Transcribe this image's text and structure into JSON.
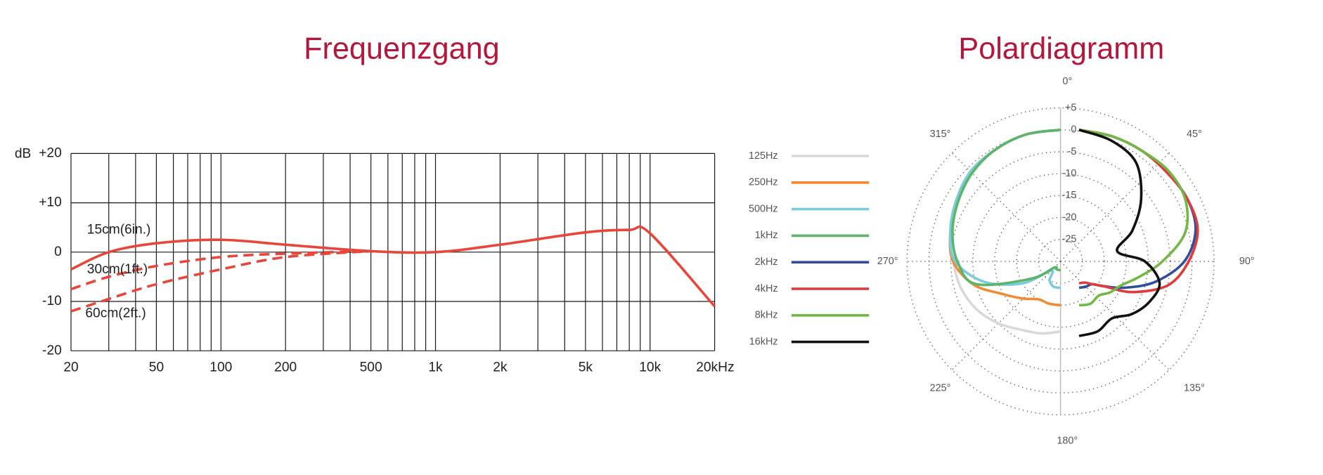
{
  "chart_data": [
    {
      "type": "line",
      "title": "Frequenzgang",
      "ylabel": "dB",
      "log_x": true,
      "grid": true,
      "xlim": [
        20,
        20000
      ],
      "xticks": [
        20,
        50,
        100,
        200,
        500,
        {
          "value": 1000,
          "label": "1k"
        },
        {
          "value": 2000,
          "label": "2k"
        },
        {
          "value": 5000,
          "label": "5k"
        },
        {
          "value": 10000,
          "label": "10k"
        },
        {
          "value": 20000,
          "label": "20kHz"
        }
      ],
      "xminor": [
        30,
        40,
        60,
        70,
        80,
        90,
        300,
        400,
        600,
        700,
        800,
        900,
        3000,
        4000,
        6000,
        7000,
        8000,
        9000
      ],
      "ylim": [
        -20,
        20
      ],
      "yticks": [
        {
          "value": 20,
          "label": "+20"
        },
        {
          "value": 10,
          "label": "+10"
        },
        0,
        -10,
        -20
      ],
      "x": [
        20,
        30,
        50,
        100,
        200,
        500,
        1000,
        2000,
        5000,
        8000,
        10000,
        20000
      ],
      "series": [
        {
          "name": "15cm(6in.)",
          "color": "#e8463a",
          "dashed": false,
          "values": [
            -3.5,
            0,
            1.8,
            2.5,
            1.5,
            0.2,
            0,
            1.5,
            4,
            4.5,
            3.8,
            -11
          ]
        },
        {
          "name": "30cm(1ft.)",
          "color": "#e8463a",
          "dashed": true,
          "values": [
            -7.5,
            -5,
            -2.8,
            -1,
            -0.3,
            0.2,
            null,
            null,
            null,
            null,
            null,
            null
          ]
        },
        {
          "name": "60cm(2ft.)",
          "color": "#e8463a",
          "dashed": true,
          "values": [
            -12,
            -9.5,
            -6.5,
            -3.5,
            -1,
            0.2,
            null,
            null,
            null,
            null,
            null,
            null
          ]
        }
      ]
    },
    {
      "type": "polar",
      "title": "Polardiagramm",
      "rlim": [
        -30,
        5
      ],
      "rticks": [
        {
          "value": 5,
          "label": "+5"
        },
        0,
        -5,
        -10,
        -15,
        -20,
        -25
      ],
      "angle_ticks": [
        {
          "value": 0,
          "label": "0°"
        },
        {
          "value": 45,
          "label": "45°"
        },
        {
          "value": 90,
          "label": "90°"
        },
        {
          "value": 135,
          "label": "135°"
        },
        {
          "value": 180,
          "label": "180°"
        },
        {
          "value": 225,
          "label": "225°"
        },
        {
          "value": 270,
          "label": "270°"
        },
        {
          "value": 315,
          "label": "315°"
        }
      ],
      "series": [
        {
          "name": "125Hz",
          "color": "#d9d9d9",
          "theta": [
            180,
            195,
            210,
            225,
            240,
            255,
            270,
            285,
            300,
            315,
            330,
            345,
            360
          ],
          "values": [
            -14,
            -13,
            -12,
            -10,
            -8,
            -6.5,
            -5.5,
            -4,
            -2.5,
            -1,
            -0.5,
            0,
            0
          ]
        },
        {
          "name": "250Hz",
          "color": "#f08a33",
          "theta": [
            180,
            195,
            210,
            225,
            240,
            255,
            270,
            285,
            300,
            315,
            330,
            345,
            360
          ],
          "values": [
            -20,
            -20,
            -20,
            -18,
            -15,
            -9.5,
            -5.5,
            -4,
            -2.5,
            -1,
            -0.5,
            0,
            0
          ]
        },
        {
          "name": "500Hz",
          "color": "#7ccbdc",
          "theta": [
            180,
            195,
            210,
            225,
            240,
            255,
            270,
            285,
            300,
            315,
            330,
            345,
            360
          ],
          "values": [
            -24,
            -24,
            -25,
            -27,
            -20,
            -12,
            -6,
            -4,
            -2.5,
            -1,
            -0.5,
            0,
            0
          ]
        },
        {
          "name": "1kHz",
          "color": "#5bb56a",
          "theta": [
            180,
            195,
            210,
            225,
            240,
            255,
            270,
            285,
            300,
            315,
            330,
            345,
            360
          ],
          "values": [
            -28,
            -28,
            -28,
            -28,
            -22,
            -10,
            -6.5,
            -4.5,
            -3,
            -1.5,
            -0.5,
            0,
            0
          ]
        },
        {
          "name": "2kHz",
          "color": "#2f4f9e",
          "theta": [
            0,
            15,
            30,
            45,
            60,
            75,
            90,
            105,
            120,
            135,
            150,
            165,
            180
          ],
          "values": [
            0,
            -0.5,
            -1,
            -1.5,
            -1.5,
            -2.5,
            -6,
            -12,
            -18,
            -22,
            -24,
            -24,
            -24
          ]
        },
        {
          "name": "4kHz",
          "color": "#e03a3a",
          "theta": [
            0,
            15,
            30,
            45,
            60,
            75,
            90,
            105,
            120,
            135,
            150,
            165,
            180
          ],
          "values": [
            0,
            -0.5,
            -1,
            -1.5,
            -1.5,
            -2,
            -5,
            -9,
            -16,
            -22,
            -24,
            -25,
            -25
          ]
        },
        {
          "name": "8kHz",
          "color": "#72b845",
          "theta": [
            0,
            15,
            30,
            45,
            60,
            75,
            90,
            105,
            120,
            135,
            150,
            165,
            180
          ],
          "values": [
            0,
            -0.5,
            -1,
            -1,
            -2,
            -5,
            -11,
            -16,
            -19,
            -20,
            -21,
            -20,
            -20
          ]
        },
        {
          "name": "16kHz",
          "color": "#111111",
          "theta": [
            0,
            15,
            30,
            45,
            60,
            75,
            90,
            105,
            120,
            135,
            150,
            165,
            180
          ],
          "values": [
            0,
            -1.5,
            -4,
            -10,
            -16,
            -21,
            -15,
            -11,
            -11.5,
            -13,
            -15,
            -13.5,
            -13
          ]
        }
      ]
    }
  ]
}
